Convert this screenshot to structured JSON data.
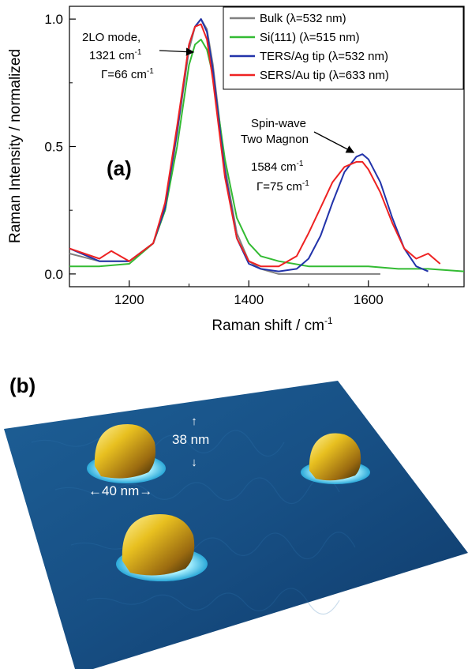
{
  "panel_a": {
    "label": "(a)",
    "ylabel": "Raman Intensity / normalized",
    "xlabel_main": "Raman shift / cm",
    "xlabel_sup": "-1",
    "annotation_2lo": {
      "line1": "2LO mode,",
      "line2_main": "1321 cm",
      "line2_sup": "-1",
      "line3_main": "Γ=66 cm",
      "line3_sup": "-1"
    },
    "annotation_spin": {
      "line1": "Spin-wave",
      "line2": "Two Magnon",
      "line3_main": "1584 cm",
      "line3_sup": "-1",
      "line4_main": "Γ=75 cm",
      "line4_sup": "-1"
    },
    "legend": [
      "Bulk  (λ=532 nm)",
      "Si(111)  (λ=515 nm)",
      "TERS/Ag tip  (λ=532 nm)",
      "SERS/Au tip  (λ=633 nm)"
    ]
  },
  "panel_b": {
    "label": "(b)",
    "height_label": "38 nm",
    "width_label": "←40 nm→",
    "arrow_up": "↑",
    "arrow_down": "↓"
  },
  "chart_data": {
    "type": "line",
    "xlim": [
      1100,
      1760
    ],
    "ylim": [
      -0.05,
      1.05
    ],
    "xticks": [
      1200,
      1400,
      1600
    ],
    "yticks": [
      0.0,
      0.5,
      1.0
    ],
    "xtick_labels": [
      "1200",
      "1400",
      "1600"
    ],
    "ytick_labels": [
      "0.0",
      "0.5",
      "1.0"
    ],
    "grid": false,
    "legend_position": "top-right",
    "series": [
      {
        "name": "Bulk  (λ=532 nm)",
        "color": "#808080",
        "x": [
          1100,
          1150,
          1200,
          1240,
          1260,
          1280,
          1300,
          1310,
          1320,
          1330,
          1340,
          1360,
          1380,
          1400,
          1420,
          1450,
          1500,
          1550,
          1600,
          1620
        ],
        "y": [
          0.08,
          0.05,
          0.05,
          0.12,
          0.25,
          0.55,
          0.88,
          0.97,
          1.0,
          0.96,
          0.82,
          0.42,
          0.16,
          0.05,
          0.02,
          0.0,
          0.0,
          0.0,
          0.0,
          0.0
        ]
      },
      {
        "name": "Si(111)  (λ=515 nm)",
        "color": "#33bb33",
        "x": [
          1100,
          1150,
          1200,
          1240,
          1260,
          1280,
          1300,
          1310,
          1320,
          1330,
          1340,
          1360,
          1380,
          1400,
          1420,
          1450,
          1500,
          1550,
          1600,
          1650,
          1700,
          1760
        ],
        "y": [
          0.03,
          0.03,
          0.04,
          0.12,
          0.25,
          0.5,
          0.82,
          0.9,
          0.92,
          0.88,
          0.78,
          0.45,
          0.22,
          0.12,
          0.07,
          0.05,
          0.03,
          0.03,
          0.03,
          0.02,
          0.02,
          0.01
        ]
      },
      {
        "name": "TERS/Ag tip  (λ=532 nm)",
        "color": "#2233aa",
        "x": [
          1100,
          1150,
          1200,
          1240,
          1260,
          1280,
          1300,
          1310,
          1320,
          1330,
          1340,
          1360,
          1380,
          1400,
          1420,
          1450,
          1480,
          1500,
          1520,
          1540,
          1560,
          1580,
          1590,
          1600,
          1620,
          1640,
          1660,
          1680,
          1700
        ],
        "y": [
          0.1,
          0.05,
          0.05,
          0.12,
          0.26,
          0.56,
          0.9,
          0.97,
          1.0,
          0.95,
          0.8,
          0.4,
          0.14,
          0.04,
          0.02,
          0.01,
          0.02,
          0.06,
          0.15,
          0.28,
          0.4,
          0.46,
          0.47,
          0.45,
          0.36,
          0.22,
          0.1,
          0.03,
          0.01
        ]
      },
      {
        "name": "SERS/Au tip  (λ=633 nm)",
        "color": "#ee2222",
        "x": [
          1100,
          1150,
          1170,
          1200,
          1240,
          1260,
          1280,
          1300,
          1310,
          1320,
          1330,
          1340,
          1360,
          1380,
          1400,
          1420,
          1450,
          1480,
          1500,
          1520,
          1540,
          1560,
          1580,
          1590,
          1600,
          1620,
          1640,
          1660,
          1680,
          1700,
          1720
        ],
        "y": [
          0.1,
          0.06,
          0.09,
          0.05,
          0.12,
          0.28,
          0.58,
          0.9,
          0.97,
          0.98,
          0.92,
          0.76,
          0.38,
          0.14,
          0.05,
          0.03,
          0.03,
          0.07,
          0.16,
          0.26,
          0.36,
          0.42,
          0.44,
          0.44,
          0.41,
          0.32,
          0.2,
          0.1,
          0.06,
          0.08,
          0.04
        ]
      }
    ]
  }
}
